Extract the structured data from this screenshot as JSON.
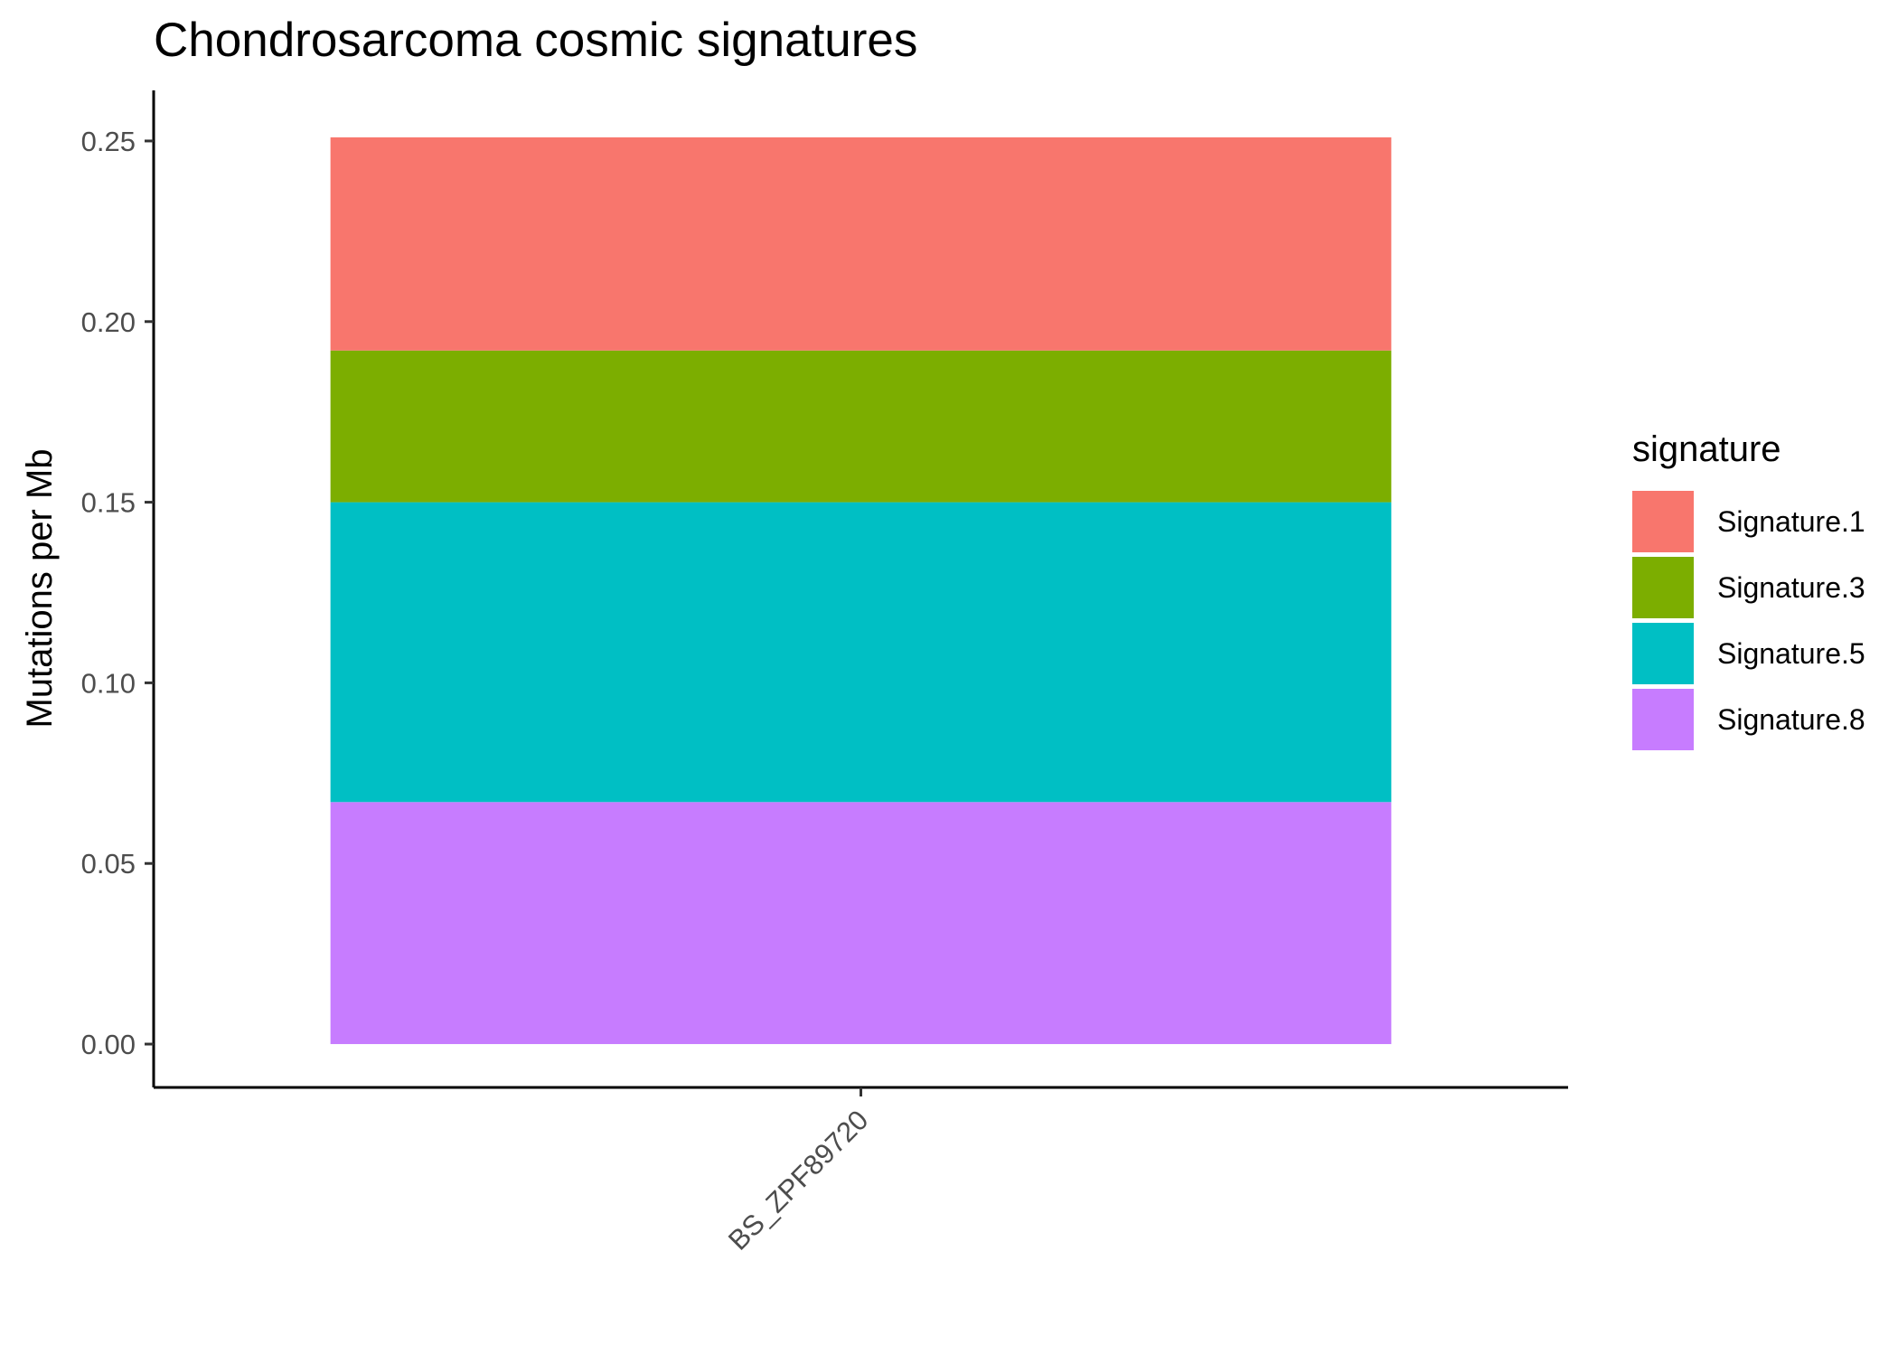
{
  "chart_data": {
    "type": "bar",
    "stacked": true,
    "title": "Chondrosarcoma cosmic signatures",
    "xlabel": "",
    "ylabel": "Mutations per Mb",
    "categories": [
      "BS_ZPF89720"
    ],
    "ylim": [
      -0.012,
      0.264
    ],
    "yticks": [
      0.0,
      0.05,
      0.1,
      0.15,
      0.2,
      0.25
    ],
    "ytick_labels": [
      "0.00",
      "0.05",
      "0.10",
      "0.15",
      "0.20",
      "0.25"
    ],
    "x_tick_rotation": "45 degrees",
    "legend_title": "signature",
    "legend_placement": "right",
    "grid": false,
    "series": [
      {
        "name": "Signature.1",
        "color": "#F8766D",
        "values": [
          0.059
        ]
      },
      {
        "name": "Signature.3",
        "color": "#7CAE00",
        "values": [
          0.042
        ]
      },
      {
        "name": "Signature.5",
        "color": "#00BFC4",
        "values": [
          0.083
        ]
      },
      {
        "name": "Signature.8",
        "color": "#C77CFF",
        "values": [
          0.067
        ]
      }
    ]
  }
}
